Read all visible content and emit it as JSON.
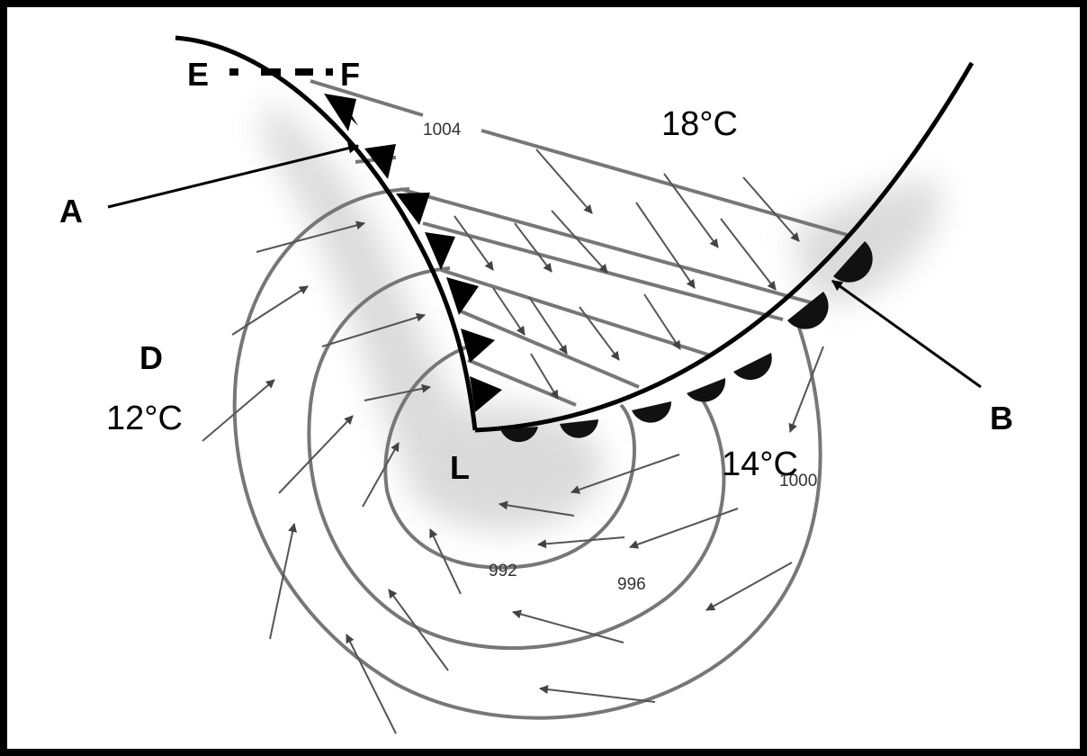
{
  "labels": {
    "A": "A",
    "B": "B",
    "D": "D",
    "E": "E",
    "F": "F",
    "L": "L"
  },
  "temperatures": {
    "north": "18°C",
    "west": "12°C",
    "south_east": "14°C"
  },
  "isobars": {
    "p1004": "1004",
    "p1000": "1000",
    "p996": "996",
    "p992": "992"
  },
  "colors": {
    "front": "#000000",
    "isobar": "#777777",
    "wind_arrow": "#555555",
    "cloud_shading": "#d4d4d4"
  },
  "icons": {
    "cold_front_symbol": "triangle",
    "warm_front_symbol": "semicircle"
  }
}
